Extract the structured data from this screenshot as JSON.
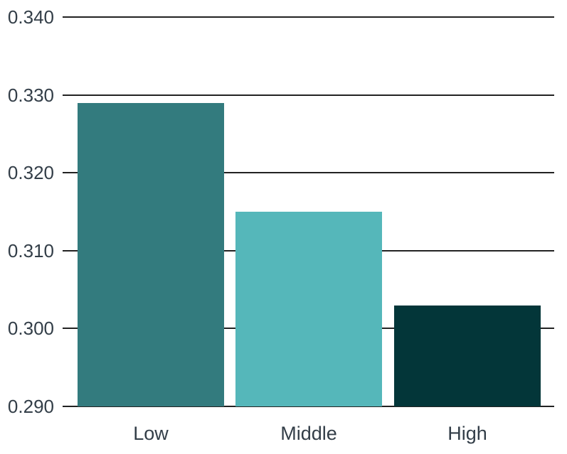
{
  "chart_data": {
    "type": "bar",
    "title": "",
    "xlabel": "",
    "ylabel": "",
    "categories": [
      "Low",
      "Middle",
      "High"
    ],
    "values": [
      0.329,
      0.315,
      0.303
    ],
    "bar_colors": [
      "#337b7e",
      "#55b7ba",
      "#033639"
    ],
    "yticks": [
      {
        "value": 0.29,
        "label": "0.290"
      },
      {
        "value": 0.3,
        "label": "0.300"
      },
      {
        "value": 0.31,
        "label": "0.310"
      },
      {
        "value": 0.32,
        "label": "0.320"
      },
      {
        "value": 0.33,
        "label": "0.330"
      },
      {
        "value": 0.34,
        "label": "0.340"
      }
    ],
    "ylim": [
      0.29,
      0.34
    ],
    "grid": "horizontal",
    "legend": "none",
    "background_color": "#ffffff",
    "gridline_color": "#222222",
    "text_color": "#333e48"
  }
}
